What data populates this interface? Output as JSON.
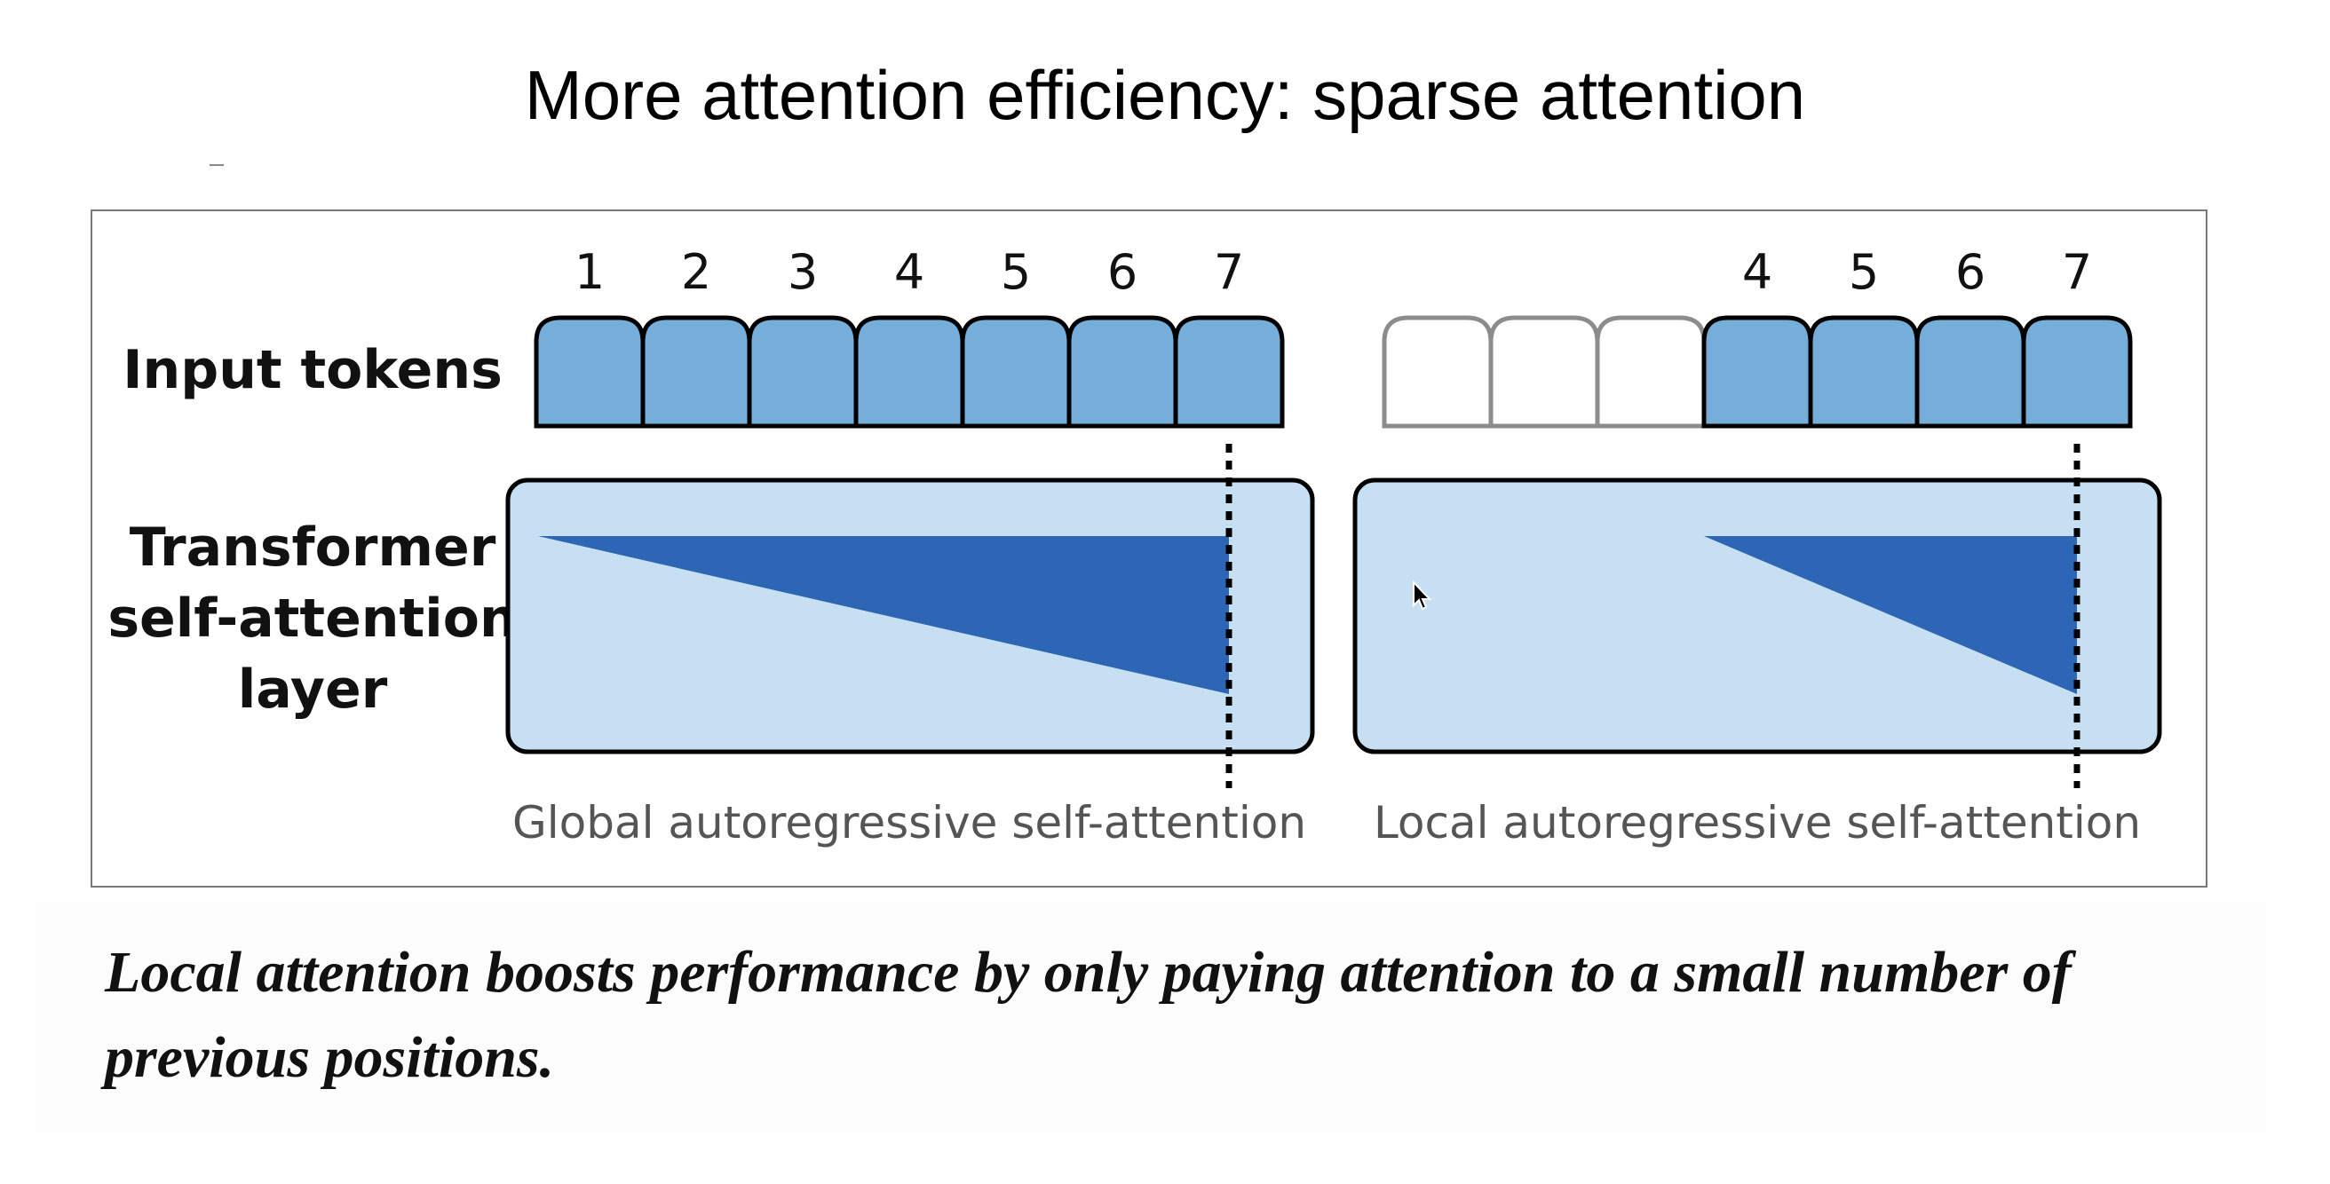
{
  "title": "More attention efficiency: sparse attention",
  "figure": {
    "row_labels": {
      "input_line1": "Input tokens",
      "layer_line1": "Transformer",
      "layer_line2": "self-attention",
      "layer_line3": "layer"
    },
    "global": {
      "tokens": [
        "1",
        "2",
        "3",
        "4",
        "5",
        "6",
        "7"
      ],
      "caption": "Global autoregressive self-attention"
    },
    "local": {
      "tokens": [
        "",
        "",
        "",
        "4",
        "5",
        "6",
        "7"
      ],
      "caption": "Local autoregressive self-attention"
    },
    "colors": {
      "token_fill": "#75aed8",
      "empty_token_stroke": "#8c8c8c",
      "layer_fill": "#c6dff2",
      "attention_fill": "#2d66b4",
      "caption_text": "#555555"
    }
  },
  "caption": "Local attention boosts performance by only paying attention to a small number of previous positions.",
  "cursor": "mouse-pointer-icon"
}
